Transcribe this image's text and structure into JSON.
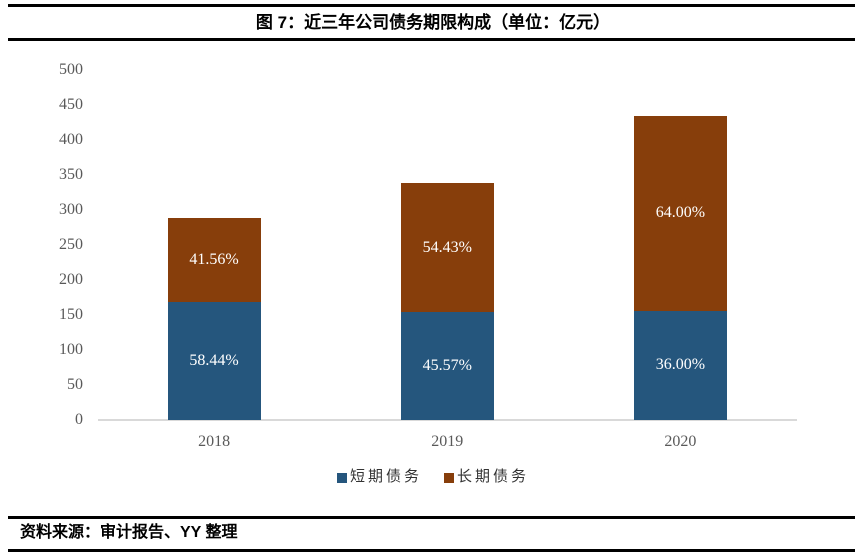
{
  "figure": {
    "title": "图 7：近三年公司债务期限构成（单位：亿元）",
    "source_note": "资料来源：审计报告、YY 整理"
  },
  "chart_data": {
    "type": "bar",
    "stacked": true,
    "title": "图 7：近三年公司债务期限构成（单位：亿元）",
    "unit": "亿元",
    "categories": [
      "2018",
      "2019",
      "2020"
    ],
    "series": [
      {
        "key": "short-term-debt",
        "name": "短期债务",
        "color": "#25567D",
        "percent_labels": [
          "58.44%",
          "45.57%",
          "36.00%"
        ],
        "percent": [
          58.44,
          45.57,
          36.0
        ],
        "values_est": [
          168.3,
          154.0,
          156.2
        ]
      },
      {
        "key": "long-term-debt",
        "name": "长期债务",
        "color": "#873E0B",
        "percent_labels": [
          "41.56%",
          "54.43%",
          "64.00%"
        ],
        "percent": [
          41.56,
          54.43,
          64.0
        ],
        "values_est": [
          119.7,
          184.0,
          277.8
        ]
      }
    ],
    "totals_est": [
      288,
      338,
      434
    ],
    "ylim": [
      0,
      500
    ],
    "yticks": [
      0,
      50,
      100,
      150,
      200,
      250,
      300,
      350,
      400,
      450,
      500
    ],
    "grid": false,
    "legend_position": "bottom",
    "axis_color": "#d9d9d9",
    "tick_label_color": "#595959"
  }
}
